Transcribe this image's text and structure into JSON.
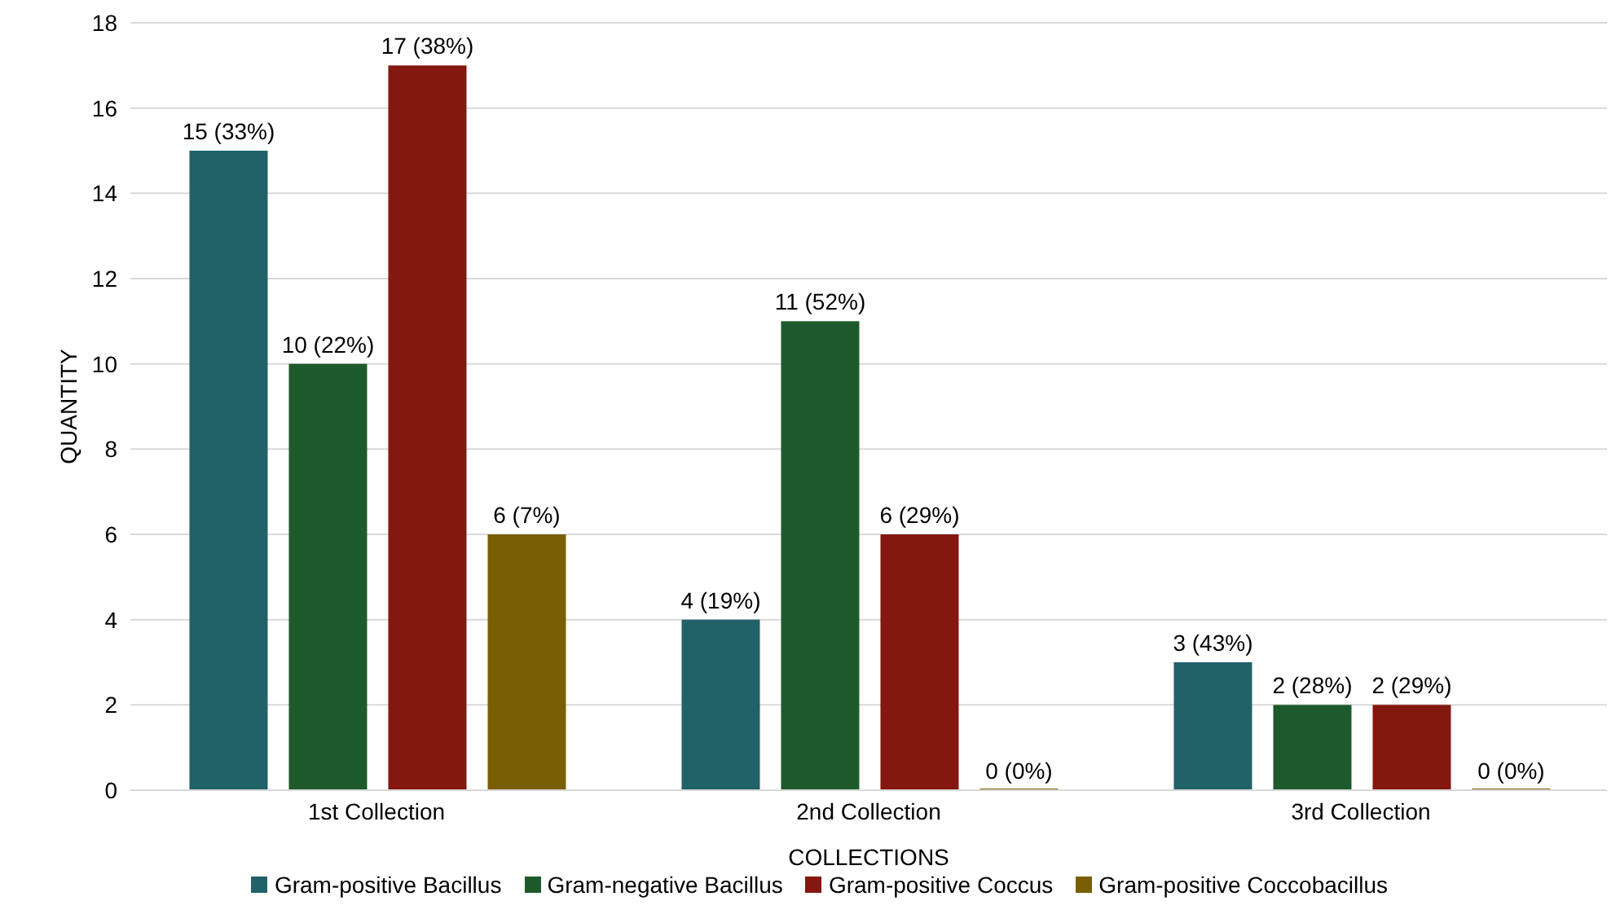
{
  "chart_data": {
    "type": "bar",
    "xlabel": "COLLECTIONS",
    "ylabel": "QUANTITY",
    "categories": [
      "1st Collection",
      "2nd Collection",
      "3rd Collection"
    ],
    "series": [
      {
        "name": "Gram-positive Bacillus",
        "color": "#216168",
        "values": [
          15,
          4,
          3
        ],
        "value_labels": [
          "15 (33%)",
          "4 (19%)",
          "3 (43%)"
        ]
      },
      {
        "name": "Gram-negative Bacillus",
        "color": "#1d5a2c",
        "values": [
          10,
          11,
          2
        ],
        "value_labels": [
          "10 (22%)",
          "11 (52%)",
          "2 (28%)"
        ]
      },
      {
        "name": "Gram-positive Coccus",
        "color": "#84170f",
        "values": [
          17,
          6,
          2
        ],
        "value_labels": [
          "17 (38%)",
          "6 (29%)",
          "2 (29%)"
        ]
      },
      {
        "name": "Gram-positive Coccobacillus",
        "color": "#7a5e04",
        "values": [
          6,
          0,
          0
        ],
        "value_labels": [
          "6 (7%)",
          "0 (0%)",
          "0 (0%)"
        ]
      }
    ],
    "ylim": [
      0,
      18
    ],
    "yticks": [
      0,
      2,
      4,
      6,
      8,
      10,
      12,
      14,
      16,
      18
    ],
    "grid": "y",
    "legend": "bottom"
  }
}
